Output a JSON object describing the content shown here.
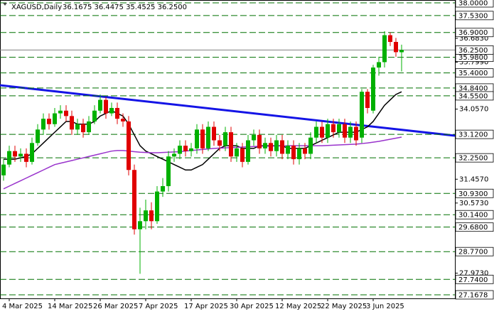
{
  "chart_data": {
    "type": "candlestick",
    "title": "XAGUSD,Daily",
    "ohlc_label": "36.1675 36.4475 35.4525 36.2500",
    "categories": [
      null,
      "4 Mar 2025",
      null,
      null,
      null,
      null,
      null,
      null,
      null,
      "14 Mar 2025",
      null,
      null,
      null,
      null,
      null,
      null,
      null,
      "26 Mar 2025",
      null,
      null,
      null,
      null,
      null,
      null,
      null,
      "7 Apr 2025",
      null,
      null,
      null,
      null,
      null,
      null,
      null,
      "17 Apr 2025",
      null,
      null,
      null,
      null,
      null,
      null,
      null,
      "30 Apr 2025",
      null,
      null,
      null,
      null,
      null,
      null,
      null,
      "12 May 2025",
      null,
      null,
      null,
      null,
      null,
      null,
      null,
      "22 May 2025",
      null,
      null,
      null,
      null,
      null,
      null,
      null,
      "3 Jun 2025",
      null,
      null,
      null,
      null,
      null
    ],
    "open": [
      31.6,
      32.0,
      32.5,
      32.3,
      32.4,
      32.1,
      32.8,
      33.3,
      33.7,
      33.5,
      33.9,
      34.0,
      33.8,
      33.3,
      33.5,
      33.2,
      33.6,
      34.0,
      34.4,
      33.9,
      34.1,
      33.7,
      33.6,
      31.8,
      29.6,
      29.9,
      30.3,
      29.9,
      31.0,
      31.2,
      32.3,
      32.4,
      32.7,
      32.5,
      32.6,
      33.3,
      32.6,
      33.4,
      32.9,
      32.7,
      33.2,
      32.3,
      32.6,
      32.1,
      32.9,
      33.1,
      32.6,
      32.8,
      32.5,
      32.9,
      32.4,
      32.7,
      32.2,
      32.6,
      32.4,
      33.0,
      33.4,
      33.0,
      33.5,
      33.2,
      33.5,
      33.0,
      33.4,
      33.0,
      34.7,
      34.0,
      35.6,
      35.8,
      36.8,
      36.55,
      36.1675
    ],
    "high": [
      32.2,
      32.7,
      32.7,
      32.6,
      32.6,
      33.0,
      33.5,
      33.9,
      33.9,
      34.1,
      34.2,
      34.2,
      34.0,
      33.7,
      33.7,
      33.8,
      34.2,
      34.6,
      34.5,
      34.3,
      34.3,
      33.9,
      33.8,
      32.0,
      30.4,
      30.7,
      30.6,
      31.2,
      31.5,
      32.5,
      32.6,
      32.9,
      32.9,
      32.8,
      33.5,
      33.5,
      33.6,
      33.6,
      33.1,
      33.4,
      33.4,
      32.8,
      32.8,
      33.1,
      33.3,
      33.3,
      33.0,
      33.0,
      33.1,
      33.1,
      32.9,
      32.9,
      32.8,
      32.8,
      33.2,
      33.6,
      33.6,
      33.7,
      33.7,
      33.7,
      33.7,
      33.6,
      33.6,
      34.8,
      34.8,
      35.7,
      36.0,
      36.95,
      36.9,
      36.7,
      36.4475
    ],
    "low": [
      31.4,
      31.9,
      32.1,
      32.1,
      31.9,
      32.0,
      32.7,
      33.1,
      33.3,
      33.4,
      33.7,
      33.6,
      33.1,
      33.1,
      33.0,
      33.1,
      33.5,
      33.9,
      33.7,
      33.8,
      33.5,
      33.4,
      31.6,
      29.4,
      27.95,
      29.6,
      29.6,
      29.8,
      30.8,
      31.0,
      32.1,
      32.2,
      32.3,
      32.3,
      32.4,
      32.4,
      32.5,
      32.7,
      32.5,
      32.5,
      32.1,
      32.1,
      31.9,
      32.0,
      32.7,
      32.4,
      32.4,
      32.3,
      32.3,
      32.2,
      32.2,
      32.0,
      32.0,
      32.2,
      32.2,
      32.8,
      32.8,
      32.8,
      33.0,
      33.0,
      32.8,
      32.8,
      32.7,
      32.8,
      33.9,
      33.9,
      35.3,
      35.6,
      36.4,
      36.0,
      35.4525
    ],
    "close": [
      32.0,
      32.5,
      32.3,
      32.4,
      32.1,
      32.8,
      33.3,
      33.7,
      33.5,
      33.9,
      34.0,
      33.8,
      33.3,
      33.5,
      33.2,
      33.6,
      34.0,
      34.4,
      33.9,
      34.1,
      33.7,
      33.6,
      31.8,
      29.6,
      29.9,
      30.3,
      29.9,
      31.0,
      31.2,
      32.3,
      32.4,
      32.7,
      32.5,
      32.6,
      33.3,
      32.6,
      33.4,
      32.9,
      32.7,
      33.2,
      32.3,
      32.6,
      32.1,
      32.9,
      33.1,
      32.6,
      32.8,
      32.5,
      32.9,
      32.4,
      32.7,
      32.2,
      32.6,
      32.4,
      33.0,
      33.4,
      33.0,
      33.5,
      33.2,
      33.5,
      33.0,
      33.4,
      32.9,
      34.7,
      34.1,
      35.6,
      35.8,
      36.8,
      36.55,
      36.17,
      36.25
    ],
    "up_color": "#00b000",
    "down_color": "#e00000",
    "lines": [
      {
        "color": "#000000",
        "values": [
          32.2,
          32.2,
          32.2,
          32.25,
          32.3,
          32.4,
          32.6,
          32.8,
          33.0,
          33.2,
          33.4,
          33.6,
          33.6,
          33.5,
          33.5,
          33.5,
          33.6,
          33.8,
          33.9,
          34.0,
          33.9,
          33.8,
          33.5,
          33.1,
          32.7,
          32.5,
          32.4,
          32.3,
          32.2,
          32.1,
          32.0,
          31.9,
          31.8,
          31.8,
          31.9,
          32.0,
          32.2,
          32.4,
          32.6,
          32.7,
          32.7,
          32.7,
          32.6,
          32.6,
          32.6,
          32.7,
          32.7,
          32.7,
          32.7,
          32.7,
          32.6,
          32.6,
          32.6,
          32.6,
          32.7,
          32.8,
          32.9,
          33.0,
          33.1,
          33.2,
          33.2,
          33.2,
          33.2,
          33.3,
          33.4,
          33.6,
          33.9,
          34.2,
          34.4,
          34.6,
          34.7
        ]
      },
      {
        "color": "#9933cc",
        "values": [
          31.1,
          31.2,
          31.3,
          31.4,
          31.5,
          31.6,
          31.7,
          31.8,
          31.9,
          32.0,
          32.05,
          32.1,
          32.15,
          32.2,
          32.25,
          32.3,
          32.35,
          32.4,
          32.45,
          32.5,
          32.52,
          32.52,
          32.5,
          32.48,
          32.46,
          32.45,
          32.44,
          32.44,
          32.45,
          32.46,
          32.47,
          32.48,
          32.5,
          32.52,
          32.54,
          32.56,
          32.58,
          32.6,
          32.61,
          32.62,
          32.63,
          32.64,
          32.65,
          32.66,
          32.67,
          32.68,
          32.68,
          32.68,
          32.69,
          32.69,
          32.7,
          32.7,
          32.7,
          32.7,
          32.7,
          32.7,
          32.7,
          32.71,
          32.72,
          32.73,
          32.74,
          32.75,
          32.76,
          32.78,
          32.8,
          32.83,
          32.86,
          32.9,
          32.94,
          32.98,
          33.02
        ]
      }
    ],
    "ylim": [
      27.1678,
      38
    ],
    "yticks": [
      {
        "value": 36.683,
        "label": "36.6830"
      },
      {
        "value": 35.799,
        "label": "35.7990"
      },
      {
        "value": 34.057,
        "label": "34.0570"
      },
      {
        "value": 31.457,
        "label": "31.4570"
      },
      {
        "value": 30.573,
        "label": "30.5730"
      },
      {
        "value": 27.973,
        "label": "27.9730"
      }
    ],
    "levels": [
      {
        "value": 38,
        "label": "38.0000"
      },
      {
        "value": 37.53,
        "label": "37.5300"
      },
      {
        "value": 36.9,
        "label": "36.9000"
      },
      {
        "value": 35.98,
        "label": "35.9800"
      },
      {
        "value": 35.4,
        "label": "35.4000"
      },
      {
        "value": 34.84,
        "label": "34.8400"
      },
      {
        "value": 34.55,
        "label": "34.5500"
      },
      {
        "value": 33.12,
        "label": "33.1200"
      },
      {
        "value": 32.25,
        "label": "32.2500"
      },
      {
        "value": 30.93,
        "label": "30.9300"
      },
      {
        "value": 30.14,
        "label": "30.1400"
      },
      {
        "value": 29.68,
        "label": "29.6800"
      },
      {
        "value": 28.77,
        "label": "28.7700"
      },
      {
        "value": 27.74,
        "label": "27.7400"
      },
      {
        "value": 27.1678,
        "label": "27.1678"
      }
    ],
    "level_color": "#007000",
    "last_price": {
      "value": 36.25,
      "label": "36.2500"
    }
  }
}
